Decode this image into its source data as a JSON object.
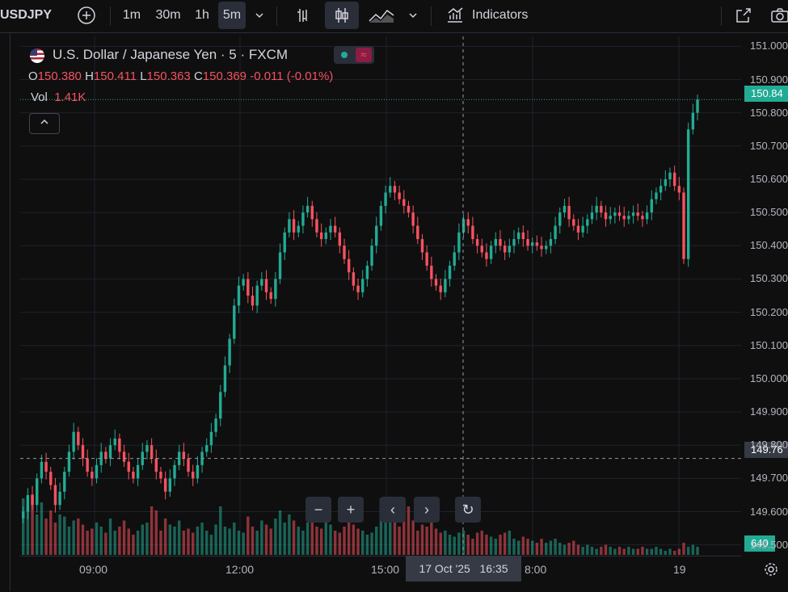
{
  "toolbar": {
    "symbol": "USDJPY",
    "add_icon": "plus-circle-icon",
    "intervals": [
      "1m",
      "30m",
      "1h",
      "5m"
    ],
    "active_interval": "5m",
    "indicators_label": "Indicators"
  },
  "legend": {
    "title": "U.S. Dollar / Japanese Yen · 5 · FXCM",
    "o_label": "O",
    "o": "150.380",
    "h_label": "H",
    "h": "150.411",
    "l_label": "L",
    "l": "150.363",
    "c_label": "C",
    "c": "150.369",
    "change": "-0.011 (-0.01%)",
    "vol_label": "Vol",
    "vol": "1.41K"
  },
  "price_axis": [
    "151.000",
    "150.900",
    "150.800",
    "150.700",
    "150.600",
    "150.500",
    "150.400",
    "150.300",
    "150.200",
    "150.100",
    "150.000",
    "149.900",
    "149.800",
    "149.700",
    "149.600",
    "149.500"
  ],
  "price_tags": {
    "last": "150.84",
    "crosshair": "149.76",
    "volume": "640"
  },
  "time_axis": [
    "09:00",
    "12:00",
    "15:00",
    "8:00",
    "19"
  ],
  "crosshair_time": {
    "date": "17 Oct '25",
    "time": "16:35"
  },
  "nav": {
    "zoom_out": "−",
    "zoom_in": "+",
    "left": "‹",
    "right": "›",
    "reset": "↻"
  },
  "colors": {
    "up": "#22ab94",
    "down": "#f7525f",
    "bg": "#0f0f0f"
  },
  "chart_data": {
    "type": "candlestick",
    "ylim": [
      149.47,
      151.03
    ],
    "closes": [
      149.6,
      149.65,
      149.62,
      149.7,
      149.75,
      149.72,
      149.68,
      149.62,
      149.66,
      149.72,
      149.78,
      149.84,
      149.8,
      149.76,
      149.72,
      149.7,
      149.74,
      149.78,
      149.76,
      149.8,
      149.82,
      149.78,
      149.75,
      149.72,
      149.7,
      149.74,
      149.78,
      149.8,
      149.76,
      149.72,
      149.7,
      149.66,
      149.7,
      149.74,
      149.78,
      149.76,
      149.72,
      149.7,
      149.74,
      149.78,
      149.8,
      149.84,
      149.88,
      149.96,
      150.04,
      150.12,
      150.22,
      150.28,
      150.3,
      150.25,
      150.22,
      150.28,
      150.3,
      150.26,
      150.24,
      150.3,
      150.38,
      150.44,
      150.48,
      150.44,
      150.46,
      150.5,
      150.52,
      150.48,
      150.44,
      150.42,
      150.44,
      150.46,
      150.44,
      150.4,
      150.36,
      150.32,
      150.28,
      150.26,
      150.3,
      150.34,
      150.4,
      150.46,
      150.52,
      150.56,
      150.58,
      150.56,
      150.54,
      150.52,
      150.5,
      150.46,
      150.42,
      150.38,
      150.34,
      150.3,
      150.28,
      150.26,
      150.3,
      150.34,
      150.38,
      150.44,
      150.48,
      150.46,
      150.42,
      150.4,
      150.38,
      150.36,
      150.4,
      150.42,
      150.4,
      150.38,
      150.4,
      150.42,
      150.44,
      150.42,
      150.4,
      150.41,
      150.4,
      150.39,
      150.4,
      150.42,
      150.46,
      150.5,
      150.52,
      150.48,
      150.46,
      150.44,
      150.46,
      150.48,
      150.5,
      150.52,
      150.5,
      150.48,
      150.49,
      150.5,
      150.49,
      150.48,
      150.49,
      150.5,
      150.49,
      150.48,
      150.5,
      150.54,
      150.56,
      150.58,
      150.6,
      150.62,
      150.58,
      150.56,
      150.36,
      150.75,
      150.8,
      150.84
    ],
    "volumes": [
      140,
      120,
      150,
      100,
      130,
      90,
      110,
      80,
      100,
      95,
      70,
      85,
      90,
      75,
      60,
      65,
      80,
      70,
      55,
      90,
      60,
      70,
      85,
      65,
      50,
      60,
      75,
      80,
      120,
      110,
      60,
      90,
      75,
      70,
      85,
      60,
      65,
      55,
      70,
      80,
      60,
      50,
      75,
      120,
      70,
      65,
      80,
      60,
      55,
      95,
      70,
      60,
      85,
      75,
      65,
      90,
      110,
      80,
      100,
      85,
      70,
      60,
      80,
      90,
      70,
      65,
      85,
      75,
      60,
      55,
      70,
      80,
      75,
      65,
      60,
      50,
      55,
      70,
      140,
      90,
      110,
      80,
      70,
      95,
      120,
      85,
      60,
      75,
      70,
      80,
      65,
      55,
      60,
      50,
      45,
      55,
      60,
      50,
      40,
      55,
      60,
      50,
      45,
      40,
      50,
      55,
      60,
      40,
      35,
      45,
      40,
      35,
      30,
      40,
      30,
      35,
      40,
      30,
      25,
      30,
      35,
      25,
      20,
      25,
      20,
      15,
      20,
      25,
      20,
      15,
      20,
      15,
      20,
      15,
      15,
      20,
      15,
      15,
      20,
      15,
      10,
      15,
      10,
      15,
      30,
      20,
      25,
      20
    ]
  }
}
